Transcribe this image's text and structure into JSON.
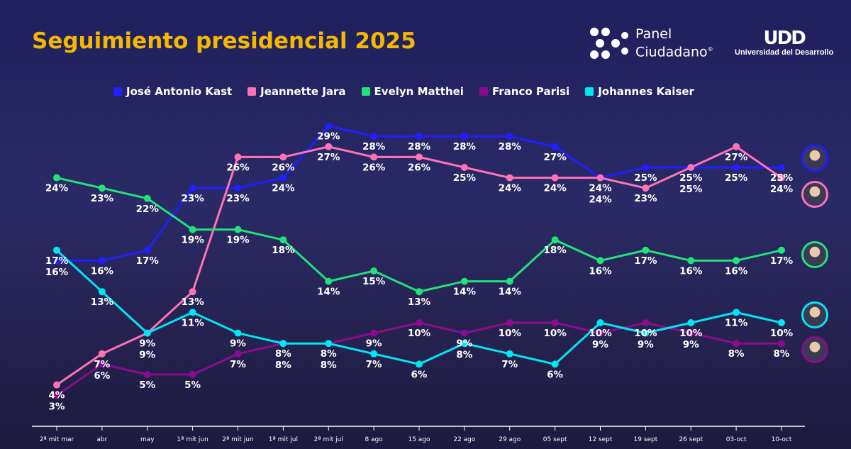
{
  "title": "Seguimiento presidencial 2025",
  "logos": {
    "panel_line1": "Panel",
    "panel_line2": "Ciudadano",
    "udd_mark": "UDD",
    "udd_name": "Universidad del Desarrollo"
  },
  "chart_data": {
    "type": "line",
    "title": "Seguimiento presidencial 2025",
    "categories": [
      "2ª mit mar",
      "abr",
      "may",
      "1ª mit jun",
      "2ª mit jun",
      "1ª mit jul",
      "2ª mit jul",
      "8 ago",
      "15 ago",
      "22 ago",
      "29 ago",
      "05 sept",
      "12 sept",
      "19 sept",
      "26 sept",
      "03-oct",
      "10-oct"
    ],
    "unit": "%",
    "legend_position": "top",
    "grid": false,
    "series": [
      {
        "name": "José Antonio Kast",
        "color": "#1f1fff",
        "values": [
          16,
          16,
          17,
          23,
          23,
          24,
          29,
          28,
          28,
          28,
          28,
          27,
          24,
          25,
          25,
          25,
          25
        ]
      },
      {
        "name": "Jeannette Jara",
        "color": "#ff72b6",
        "values": [
          4,
          7,
          9,
          13,
          26,
          26,
          27,
          26,
          26,
          25,
          24,
          24,
          24,
          23,
          25,
          27,
          24
        ]
      },
      {
        "name": "Evelyn Matthei",
        "color": "#22e27a",
        "values": [
          24,
          23,
          22,
          19,
          19,
          18,
          14,
          15,
          13,
          14,
          14,
          18,
          16,
          17,
          16,
          16,
          17
        ]
      },
      {
        "name": "Franco Parisi",
        "color": "#8a0c8c",
        "values": [
          3,
          6,
          5,
          5,
          7,
          8,
          8,
          9,
          10,
          9,
          10,
          10,
          9,
          10,
          9,
          8,
          8
        ]
      },
      {
        "name": "Johannes Kaiser",
        "color": "#00e6f2",
        "values": [
          17,
          13,
          9,
          11,
          9,
          8,
          8,
          7,
          6,
          8,
          7,
          6,
          10,
          9,
          10,
          11,
          10
        ]
      }
    ]
  }
}
